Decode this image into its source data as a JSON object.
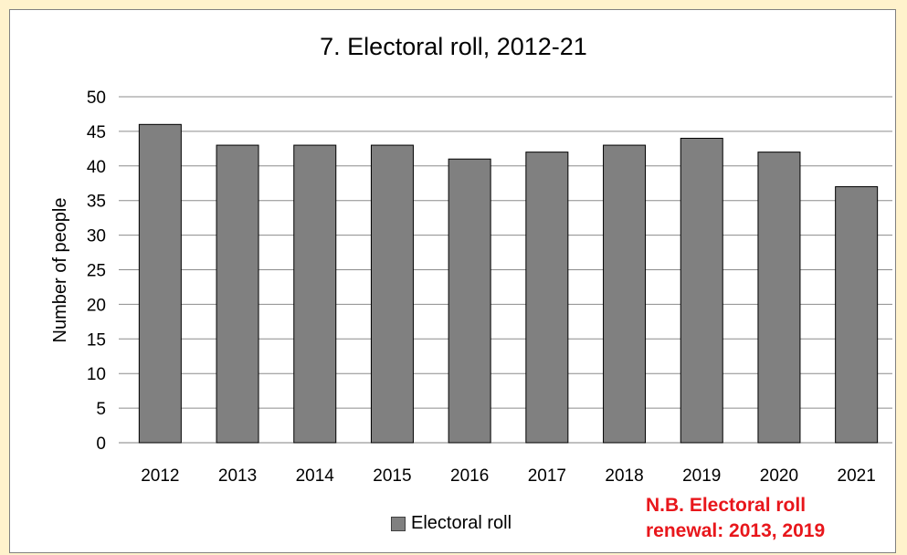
{
  "chart_data": {
    "type": "bar",
    "title": "7. Electoral roll, 2012-21",
    "xlabel": "",
    "ylabel": "Number of people",
    "categories": [
      "2012",
      "2013",
      "2014",
      "2015",
      "2016",
      "2017",
      "2018",
      "2019",
      "2020",
      "2021"
    ],
    "series": [
      {
        "name": "Electoral roll",
        "values": [
          46,
          43,
          43,
          43,
          41,
          42,
          43,
          44,
          42,
          37
        ]
      }
    ],
    "ylim": [
      0,
      50
    ],
    "yticks": [
      0,
      5,
      10,
      15,
      20,
      25,
      30,
      35,
      40,
      45,
      50
    ],
    "grid": true,
    "legend": "bottom",
    "bar_color": "#808080",
    "annotation": {
      "line1": "N.B. Electoral roll",
      "line2": "renewal: 2013, 2019",
      "color": "#E8161B"
    }
  },
  "colors": {
    "background": "#FFF2CC",
    "plot": "#FFFFFF",
    "bar": "#808080",
    "note": "#E8161B"
  }
}
